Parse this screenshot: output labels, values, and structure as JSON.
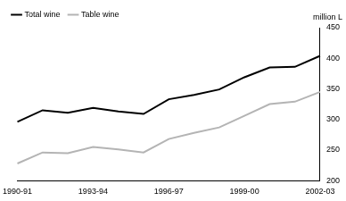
{
  "chart_data": {
    "type": "line",
    "y_label": "million L",
    "categories": [
      "1990-91",
      null,
      null,
      "1993-94",
      null,
      null,
      "1996-97",
      null,
      null,
      "1999-00",
      null,
      null,
      "2002-03"
    ],
    "series": [
      {
        "name": "Total wine",
        "color": "#000000",
        "values": [
          296,
          315,
          311,
          319,
          313,
          309,
          333,
          340,
          349,
          369,
          385,
          386,
          404
        ]
      },
      {
        "name": "Table wine",
        "color": "#b4b4b4",
        "values": [
          228,
          246,
          245,
          255,
          251,
          246,
          268,
          278,
          287,
          306,
          325,
          329,
          345
        ]
      }
    ],
    "ylim": [
      200,
      450
    ],
    "yticks": [
      200,
      250,
      300,
      350,
      400,
      450
    ],
    "grid": false,
    "legend": "top-left"
  }
}
